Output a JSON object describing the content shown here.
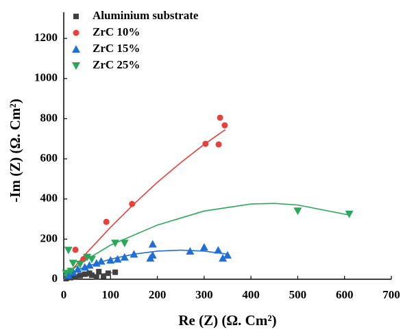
{
  "chart_data": {
    "type": "scatter",
    "xlabel": "Re (Z) (Ω. Cm²)",
    "ylabel": "-Im (Z) (Ω. Cm²)",
    "xlim": [
      0,
      700
    ],
    "ylim": [
      0,
      1330
    ],
    "xticks": [
      0,
      100,
      200,
      300,
      400,
      500,
      600,
      700
    ],
    "yticks": [
      0,
      200,
      400,
      600,
      800,
      1000,
      1200
    ],
    "legend": "top-left",
    "series": [
      {
        "name": "Aluminium substrate",
        "color": "#404040",
        "marker": "square",
        "x": [
          5,
          15,
          25,
          35,
          45,
          55,
          60,
          70,
          75,
          85,
          95,
          110
        ],
        "y": [
          3,
          8,
          12,
          18,
          25,
          30,
          20,
          12,
          38,
          15,
          30,
          35
        ],
        "fit": {
          "color": "#808080",
          "x": [
            0,
            110
          ],
          "y": [
            0,
            35
          ]
        }
      },
      {
        "name": "ZrC 10%",
        "color": "#e8403a",
        "marker": "circle",
        "x": [
          25,
          42,
          91,
          146,
          303,
          331,
          334,
          344
        ],
        "y": [
          147,
          100,
          286,
          375,
          675,
          672,
          805,
          767
        ],
        "fit": {
          "color": "#e8403a",
          "x": [
            0,
            50,
            100,
            150,
            200,
            250,
            300,
            345
          ],
          "y": [
            0,
            134,
            259,
            375,
            483,
            581,
            672,
            745
          ]
        }
      },
      {
        "name": "ZrC 15%",
        "color": "#1f6fd6",
        "marker": "triangle-up",
        "x": [
          10,
          20,
          30,
          45,
          55,
          70,
          80,
          100,
          115,
          130,
          150,
          185,
          190,
          190,
          270,
          300,
          330,
          340,
          350
        ],
        "y": [
          20,
          35,
          50,
          60,
          70,
          80,
          90,
          95,
          100,
          110,
          125,
          105,
          120,
          175,
          140,
          160,
          145,
          105,
          120
        ],
        "fit": {
          "color": "#1f6fd6",
          "x": [
            0,
            50,
            100,
            150,
            200,
            250,
            300,
            350
          ],
          "y": [
            20,
            65,
            100,
            125,
            140,
            145,
            140,
            125
          ]
        }
      },
      {
        "name": "ZrC 25%",
        "color": "#2aa85a",
        "marker": "triangle-down",
        "x": [
          5,
          10,
          15,
          20,
          35,
          50,
          60,
          110,
          130,
          500,
          610
        ],
        "y": [
          30,
          145,
          40,
          80,
          75,
          110,
          100,
          180,
          180,
          340,
          325
        ],
        "fit": {
          "color": "#2aa85a",
          "x": [
            0,
            50,
            100,
            200,
            300,
            400,
            450,
            500,
            610
          ],
          "y": [
            20,
            100,
            170,
            270,
            340,
            375,
            378,
            370,
            320
          ]
        }
      }
    ]
  }
}
